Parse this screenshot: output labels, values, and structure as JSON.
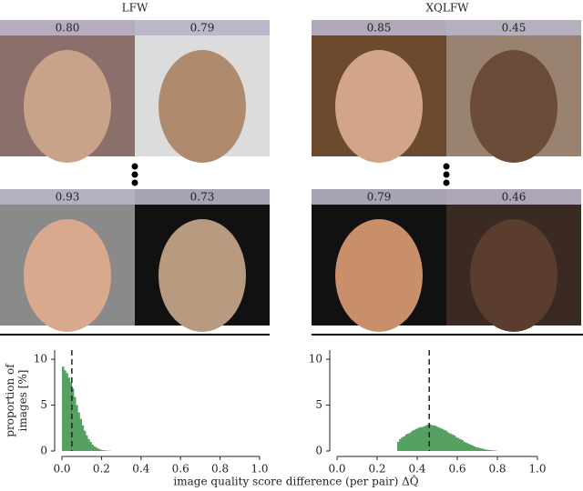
{
  "panels": [
    {
      "title": "LFW",
      "rows": [
        [
          "0.80",
          "0.79"
        ],
        [
          "0.93",
          "0.73"
        ]
      ]
    },
    {
      "title": "XQLFW",
      "rows": [
        [
          "0.85",
          "0.45"
        ],
        [
          "0.79",
          "0.46"
        ]
      ]
    }
  ],
  "x_label": "image quality score difference (per pair) ΔQ̂",
  "chart_data": [
    {
      "type": "histogram",
      "y_label": "proportion of images [%]",
      "color": "#56a061",
      "bins": [
        0,
        0.01,
        0.02,
        0.03,
        0.04,
        0.05,
        0.06,
        0.07,
        0.08,
        0.09,
        0.1,
        0.11,
        0.12,
        0.13,
        0.14,
        0.15,
        0.16,
        0.17,
        0.18,
        0.19,
        0.2,
        0.21,
        0.22,
        0.23,
        0.24,
        0.25
      ],
      "values": [
        9.2,
        8.8,
        8.5,
        8,
        7.5,
        6.8,
        5.9,
        5,
        4.2,
        3.5,
        2.8,
        2.2,
        1.7,
        1.3,
        1,
        0.7,
        0.5,
        0.35,
        0.25,
        0.15,
        0.1,
        0.07,
        0.05,
        0.03,
        0.02
      ],
      "reference_line": 0.05,
      "xlim": [
        0,
        1
      ],
      "ylim": [
        0,
        11
      ],
      "xticks": [
        {
          "value": 0,
          "label": "0.0"
        },
        {
          "value": 0.2,
          "label": "0.2"
        },
        {
          "value": 0.4,
          "label": "0.4"
        },
        {
          "value": 0.6,
          "label": "0.6"
        },
        {
          "value": 0.8,
          "label": "0.8"
        },
        {
          "value": 1,
          "label": "1.0"
        }
      ],
      "yticks": [
        0,
        5,
        10
      ]
    },
    {
      "type": "histogram",
      "color": "#56a061",
      "bins": [
        0.3,
        0.31,
        0.32,
        0.33,
        0.34,
        0.35,
        0.36,
        0.37,
        0.38,
        0.39,
        0.4,
        0.41,
        0.42,
        0.43,
        0.44,
        0.45,
        0.46,
        0.47,
        0.48,
        0.49,
        0.5,
        0.51,
        0.52,
        0.53,
        0.54,
        0.55,
        0.56,
        0.57,
        0.58,
        0.59,
        0.6,
        0.61,
        0.62,
        0.63,
        0.64,
        0.65,
        0.66,
        0.67,
        0.68,
        0.69,
        0.7,
        0.71,
        0.72,
        0.73,
        0.74,
        0.75,
        0.76,
        0.77,
        0.78,
        0.79,
        0.8
      ],
      "values": [
        1.0,
        1.3,
        1.5,
        1.6,
        1.8,
        1.9,
        2.0,
        2.2,
        2.3,
        2.4,
        2.5,
        2.6,
        2.6,
        2.7,
        2.8,
        2.9,
        2.9,
        2.8,
        2.8,
        2.7,
        2.6,
        2.5,
        2.4,
        2.3,
        2.2,
        2.0,
        1.9,
        1.8,
        1.7,
        1.5,
        1.4,
        1.3,
        1.2,
        1.0,
        0.9,
        0.8,
        0.7,
        0.6,
        0.5,
        0.4,
        0.35,
        0.3,
        0.25,
        0.2,
        0.15,
        0.12,
        0.1,
        0.08,
        0.05,
        0.03
      ],
      "reference_line": 0.46,
      "xlim": [
        0,
        1
      ],
      "ylim": [
        0,
        11
      ],
      "xticks": [
        {
          "value": 0,
          "label": "0.0"
        },
        {
          "value": 0.2,
          "label": "0.2"
        },
        {
          "value": 0.4,
          "label": "0.4"
        },
        {
          "value": 0.6,
          "label": "0.6"
        },
        {
          "value": 0.8,
          "label": "0.8"
        },
        {
          "value": 1,
          "label": "1.0"
        }
      ],
      "yticks": [
        0,
        5,
        10
      ]
    }
  ]
}
